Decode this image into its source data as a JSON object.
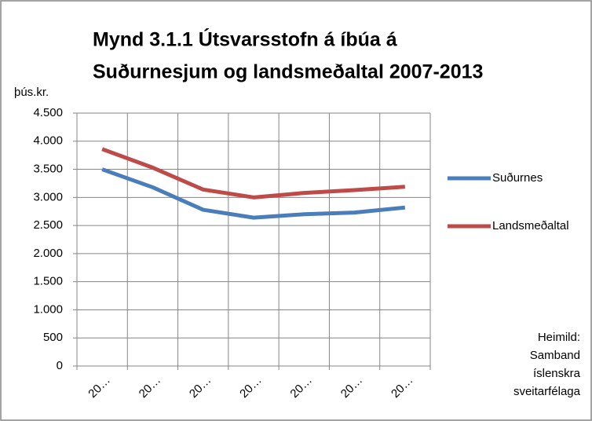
{
  "chart_data": {
    "type": "line",
    "title": [
      "Mynd 3.1.1 Útsvarsstofn á íbúa á",
      "Suðurnesjum og landsmeðaltal 2007-2013"
    ],
    "y_label": "þús.kr.",
    "categories": [
      "20…",
      "20…",
      "20…",
      "20…",
      "20…",
      "20…",
      "20…"
    ],
    "series": [
      {
        "name": "Suðurnes",
        "color": "#4a7ebb",
        "values": [
          3500,
          3180,
          2780,
          2640,
          2700,
          2730,
          2820
        ]
      },
      {
        "name": "Landsmeðaltal",
        "color": "#be4b48",
        "values": [
          3860,
          3530,
          3140,
          3000,
          3080,
          3130,
          3190
        ]
      }
    ],
    "ylim": [
      0,
      4500
    ],
    "yticks": [
      0,
      500,
      {
        "value": 1000,
        "label": "1.000"
      },
      {
        "value": 1500,
        "label": "1.500"
      },
      {
        "value": 2000,
        "label": "2.000"
      },
      {
        "value": 2500,
        "label": "2.500"
      },
      {
        "value": 3000,
        "label": "3.000"
      },
      {
        "value": 3500,
        "label": "3.500"
      },
      {
        "value": 4000,
        "label": "4.000"
      },
      {
        "value": 4500,
        "label": "4.500"
      }
    ],
    "grid": true,
    "legend": "right",
    "annotation": [
      "Heimild:",
      "Samband",
      "íslenskra",
      "sveitarfélaga"
    ]
  }
}
